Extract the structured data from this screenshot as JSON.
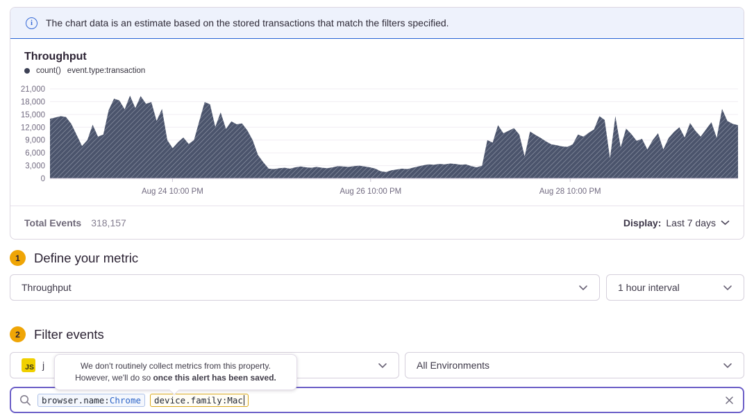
{
  "banner": {
    "text": "The chart data is an estimate based on the stored transactions that match the filters specified."
  },
  "chart": {
    "title": "Throughput",
    "legend": {
      "series_label": "count()",
      "query_label": "event.type:transaction"
    },
    "y_ticks": [
      "21,000",
      "18,000",
      "15,000",
      "12,000",
      "9,000",
      "6,000",
      "3,000",
      "0"
    ],
    "x_ticks": [
      {
        "label": "Aug 24 10:00 PM",
        "f": 0.178
      },
      {
        "label": "Aug 26 10:00 PM",
        "f": 0.466
      },
      {
        "label": "Aug 28 10:00 PM",
        "f": 0.756
      }
    ],
    "colors": {
      "area": "#4b546c",
      "hatch": "#969cac",
      "grid": "#f0edf3",
      "axis_text": "#716a80",
      "baseline": "#d4cbdc"
    }
  },
  "chart_data": {
    "type": "area",
    "title": "Throughput",
    "series": [
      {
        "name": "count() event.type:transaction",
        "values": [
          14000,
          14300,
          14600,
          14400,
          12800,
          10200,
          7600,
          9000,
          12600,
          9800,
          10300,
          16000,
          18700,
          18300,
          16200,
          19400,
          16500,
          19300,
          17500,
          17900,
          13500,
          16300,
          9000,
          7100,
          8500,
          9600,
          8100,
          9000,
          13500,
          17900,
          17400,
          12100,
          15500,
          11600,
          13400,
          12700,
          12900,
          11300,
          9000,
          5500,
          3800,
          2300,
          2200,
          2400,
          2500,
          2300,
          2600,
          2800,
          2600,
          2500,
          2700,
          2500,
          2400,
          2600,
          2900,
          2800,
          2700,
          2900,
          3000,
          2800,
          2600,
          2300,
          1700,
          1500,
          1900,
          2100,
          2300,
          2200,
          2500,
          2800,
          3100,
          3300,
          3200,
          3400,
          3300,
          3500,
          3400,
          3200,
          3300,
          2900,
          2600,
          3000,
          9000,
          8400,
          12500,
          10600,
          11200,
          11800,
          10300,
          5200,
          11000,
          10200,
          9500,
          8700,
          8000,
          7800,
          7500,
          7400,
          8000,
          10300,
          9800,
          10700,
          11500,
          14600,
          13700,
          4700,
          14600,
          7300,
          11700,
          10400,
          8800,
          9300,
          6800,
          9000,
          10600,
          6800,
          9500,
          10900,
          12000,
          9600,
          13000,
          11200,
          9800,
          11500,
          13200,
          9500,
          16300,
          13500,
          12800,
          12500
        ]
      }
    ],
    "x_axis_labels": [
      "Aug 24 10:00 PM",
      "Aug 26 10:00 PM",
      "Aug 28 10:00 PM"
    ],
    "ylim": [
      0,
      21000
    ],
    "y_tick_step": 3000,
    "time_range": "Last 7 days",
    "grid": true,
    "legend_position": "top-left"
  },
  "footer": {
    "total_label": "Total Events",
    "total_value": "318,157",
    "display_label": "Display:",
    "display_value": "Last 7 days"
  },
  "sections": {
    "metric": {
      "number": "1",
      "title": "Define your metric"
    },
    "filter": {
      "number": "2",
      "title": "Filter events"
    }
  },
  "metric": {
    "aggregate_value": "Throughput",
    "interval_value": "1 hour interval"
  },
  "filter": {
    "project_badge": "JS",
    "project_value": "j",
    "environment_value": "All Environments"
  },
  "tooltip": {
    "line1": "We don't routinely collect metrics from this property.",
    "line2_prefix": "However, we'll do so ",
    "line2_bold": "once this alert has been saved."
  },
  "search": {
    "tokens": [
      {
        "key": "browser.name:",
        "value": "Chrome"
      },
      {
        "key": "device.family:",
        "value": "Mac"
      }
    ]
  }
}
